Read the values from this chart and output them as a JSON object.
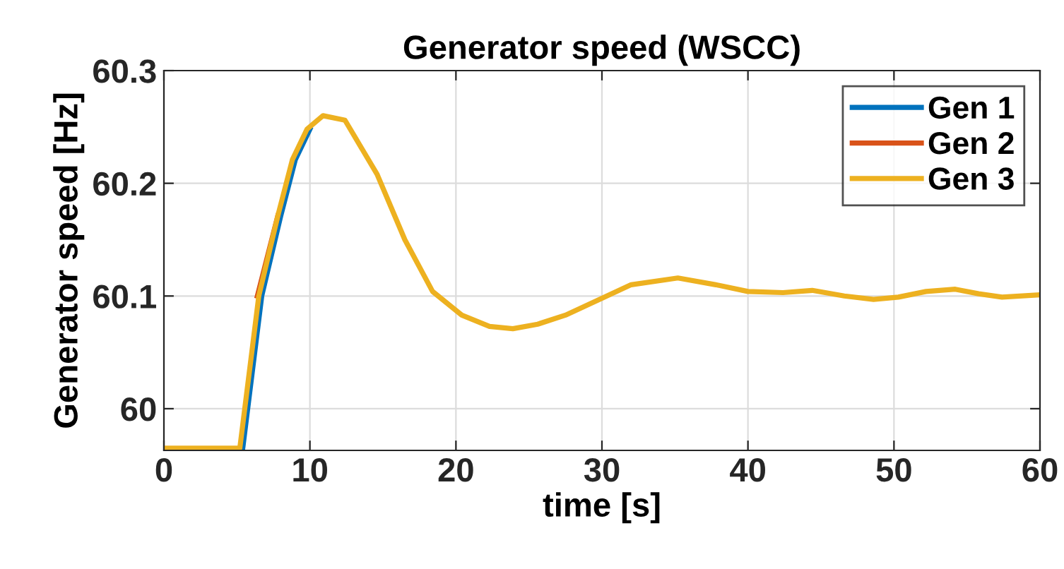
{
  "chart_data": {
    "type": "line",
    "title": "Generator speed (WSCC)",
    "xlabel": "time [s]",
    "ylabel": "Generator speed [Hz]",
    "xlim": [
      0,
      60
    ],
    "ylim": [
      59.963,
      60.3
    ],
    "xticks": [
      0,
      10,
      20,
      30,
      40,
      50,
      60
    ],
    "yticks": [
      60,
      60.1,
      60.2,
      60.3
    ],
    "grid": true,
    "legend": "top right",
    "line_style": "solid",
    "marker": "none",
    "series": [
      {
        "name": "Gen 1",
        "color": "#0072bd",
        "x": [
          5.4,
          6.7,
          8.0,
          9.0,
          10.0
        ],
        "values": [
          59.965,
          60.1,
          60.171,
          60.221,
          60.248
        ]
      },
      {
        "name": "Gen 2",
        "color": "#d95319",
        "x": [
          6.4,
          7.8
        ],
        "values": [
          60.1,
          60.171
        ]
      },
      {
        "name": "Gen 3",
        "color": "#edb120",
        "x": [
          0,
          5.2,
          6.5,
          7.8,
          8.8,
          9.8,
          10.9,
          12.4,
          14.6,
          16.5,
          18.4,
          20.4,
          22.3,
          23.9,
          25.6,
          27.5,
          30,
          32,
          35.2,
          37.8,
          40,
          42.4,
          44.4,
          46.6,
          48.6,
          50.3,
          52.2,
          54.2,
          55.8,
          57.4,
          60
        ],
        "values": [
          59.965,
          59.965,
          60.1,
          60.171,
          60.221,
          60.248,
          60.26,
          60.256,
          60.208,
          60.15,
          60.104,
          60.083,
          60.073,
          60.071,
          60.075,
          60.083,
          60.098,
          60.11,
          60.116,
          60.11,
          60.104,
          60.103,
          60.105,
          60.1,
          60.097,
          60.099,
          60.104,
          60.106,
          60.102,
          60.099,
          60.101
        ]
      }
    ]
  }
}
